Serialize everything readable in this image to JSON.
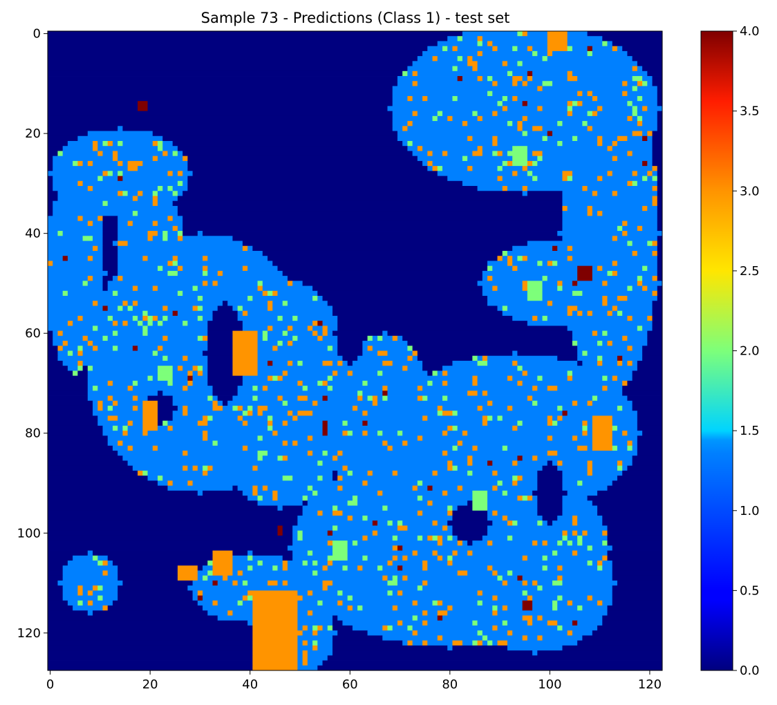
{
  "chart_data": {
    "type": "heatmap",
    "title": "Sample 73 - Predictions (Class 1) - test set",
    "xlabel": "",
    "ylabel": "",
    "xlim": [
      -0.5,
      122.5
    ],
    "ylim": [
      127.5,
      -0.5
    ],
    "grid": false,
    "colormap": "jet",
    "colorbar": {
      "range": [
        0.0,
        4.0
      ],
      "ticks": [
        "0.0",
        "0.5",
        "1.0",
        "1.5",
        "2.0",
        "2.5",
        "3.0",
        "3.5",
        "4.0"
      ]
    },
    "xticks": [
      "0",
      "20",
      "40",
      "60",
      "80",
      "100",
      "120"
    ],
    "yticks": [
      "0",
      "20",
      "40",
      "60",
      "80",
      "100",
      "120"
    ],
    "grid_size": {
      "rows": 128,
      "cols": 123
    },
    "class_values": [
      0,
      1,
      2,
      3,
      4
    ],
    "regions": [
      {
        "value": 1,
        "kind": "ellipse",
        "cx": 30,
        "cy": 66,
        "rx": 23,
        "ry": 26
      },
      {
        "value": 1,
        "kind": "ellipse",
        "cx": 46,
        "cy": 72,
        "rx": 15,
        "ry": 23
      },
      {
        "value": 1,
        "kind": "ellipse",
        "cx": 95,
        "cy": 15,
        "rx": 27,
        "ry": 17
      },
      {
        "value": 1,
        "kind": "ellipse",
        "cx": 112,
        "cy": 40,
        "rx": 10,
        "ry": 32
      },
      {
        "value": 1,
        "kind": "ellipse",
        "cx": 104,
        "cy": 50,
        "rx": 18,
        "ry": 9
      },
      {
        "value": 1,
        "kind": "ellipse",
        "cx": 93,
        "cy": 80,
        "rx": 25,
        "ry": 16
      },
      {
        "value": 1,
        "kind": "ellipse",
        "cx": 67,
        "cy": 80,
        "rx": 10,
        "ry": 20
      },
      {
        "value": 1,
        "kind": "ellipse",
        "cx": 80,
        "cy": 103,
        "rx": 32,
        "ry": 20
      },
      {
        "value": 1,
        "kind": "ellipse",
        "cx": 97,
        "cy": 110,
        "rx": 16,
        "ry": 14
      },
      {
        "value": 1,
        "kind": "ellipse",
        "cx": 14,
        "cy": 28,
        "rx": 14,
        "ry": 9
      },
      {
        "value": 1,
        "kind": "ellipse",
        "cx": 20,
        "cy": 42,
        "rx": 7,
        "ry": 11
      },
      {
        "value": 1,
        "kind": "ellipse",
        "cx": 5,
        "cy": 48,
        "rx": 6,
        "ry": 20
      },
      {
        "value": 1,
        "kind": "ellipse",
        "cx": 8,
        "cy": 110,
        "rx": 6,
        "ry": 6
      },
      {
        "value": 1,
        "kind": "ellipse",
        "cx": 40,
        "cy": 111,
        "rx": 12,
        "ry": 7
      },
      {
        "value": 1,
        "kind": "ellipse",
        "cx": 51,
        "cy": 120,
        "rx": 6,
        "ry": 8
      },
      {
        "value": 0,
        "kind": "ellipse",
        "cx": 35,
        "cy": 64,
        "rx": 4,
        "ry": 10
      },
      {
        "value": 0,
        "kind": "ellipse",
        "cx": 22,
        "cy": 75,
        "rx": 3,
        "ry": 3
      },
      {
        "value": 0,
        "kind": "ellipse",
        "cx": 84,
        "cy": 98,
        "rx": 4,
        "ry": 4
      },
      {
        "value": 0,
        "kind": "ellipse",
        "cx": 100,
        "cy": 92,
        "rx": 3,
        "ry": 6
      },
      {
        "value": 0,
        "kind": "ellipse",
        "cx": 60,
        "cy": 60,
        "rx": 3,
        "ry": 6
      },
      {
        "value": 3,
        "kind": "rect",
        "x0": 37,
        "y0": 60,
        "x1": 42,
        "y1": 69
      },
      {
        "value": 3,
        "kind": "rect",
        "x0": 41,
        "y0": 112,
        "x1": 50,
        "y1": 128
      },
      {
        "value": 3,
        "kind": "rect",
        "x0": 109,
        "y0": 77,
        "x1": 113,
        "y1": 84
      },
      {
        "value": 3,
        "kind": "rect",
        "x0": 33,
        "y0": 104,
        "x1": 37,
        "y1": 109
      },
      {
        "value": 3,
        "kind": "rect",
        "x0": 26,
        "y0": 107,
        "x1": 30,
        "y1": 110
      },
      {
        "value": 3,
        "kind": "rect",
        "x0": 100,
        "y0": 0,
        "x1": 104,
        "y1": 4
      },
      {
        "value": 3,
        "kind": "rect",
        "x0": 95,
        "y0": 50,
        "x1": 98,
        "y1": 52
      },
      {
        "value": 3,
        "kind": "rect",
        "x0": 19,
        "y0": 74,
        "x1": 22,
        "y1": 80
      },
      {
        "value": 2,
        "kind": "rect",
        "x0": 22,
        "y0": 67,
        "x1": 25,
        "y1": 70
      },
      {
        "value": 2,
        "kind": "rect",
        "x0": 57,
        "y0": 102,
        "x1": 60,
        "y1": 106
      },
      {
        "value": 2,
        "kind": "rect",
        "x0": 85,
        "y0": 92,
        "x1": 88,
        "y1": 96
      },
      {
        "value": 2,
        "kind": "rect",
        "x0": 93,
        "y0": 23,
        "x1": 96,
        "y1": 27
      },
      {
        "value": 2,
        "kind": "rect",
        "x0": 96,
        "y0": 50,
        "x1": 99,
        "y1": 54
      },
      {
        "value": 4,
        "kind": "rect",
        "x0": 106,
        "y0": 47,
        "x1": 109,
        "y1": 50
      },
      {
        "value": 4,
        "kind": "rect",
        "x0": 18,
        "y0": 14,
        "x1": 20,
        "y1": 16
      },
      {
        "value": 4,
        "kind": "rect",
        "x0": 55,
        "y0": 78,
        "x1": 56,
        "y1": 81
      },
      {
        "value": 4,
        "kind": "rect",
        "x0": 46,
        "y0": 99,
        "x1": 47,
        "y1": 101
      },
      {
        "value": 4,
        "kind": "rect",
        "x0": 95,
        "y0": 114,
        "x1": 97,
        "y1": 116
      }
    ],
    "speckle": [
      {
        "value": 3,
        "probability": 0.06,
        "within_value": 1
      },
      {
        "value": 2,
        "probability": 0.035,
        "within_value": 1
      },
      {
        "value": 4,
        "probability": 0.005,
        "within_value": 1
      }
    ],
    "colors": {
      "0": "#00007f",
      "1": "#0080ff",
      "2": "#7dff7a",
      "3": "#ff9400",
      "4": "#7f0000"
    }
  }
}
